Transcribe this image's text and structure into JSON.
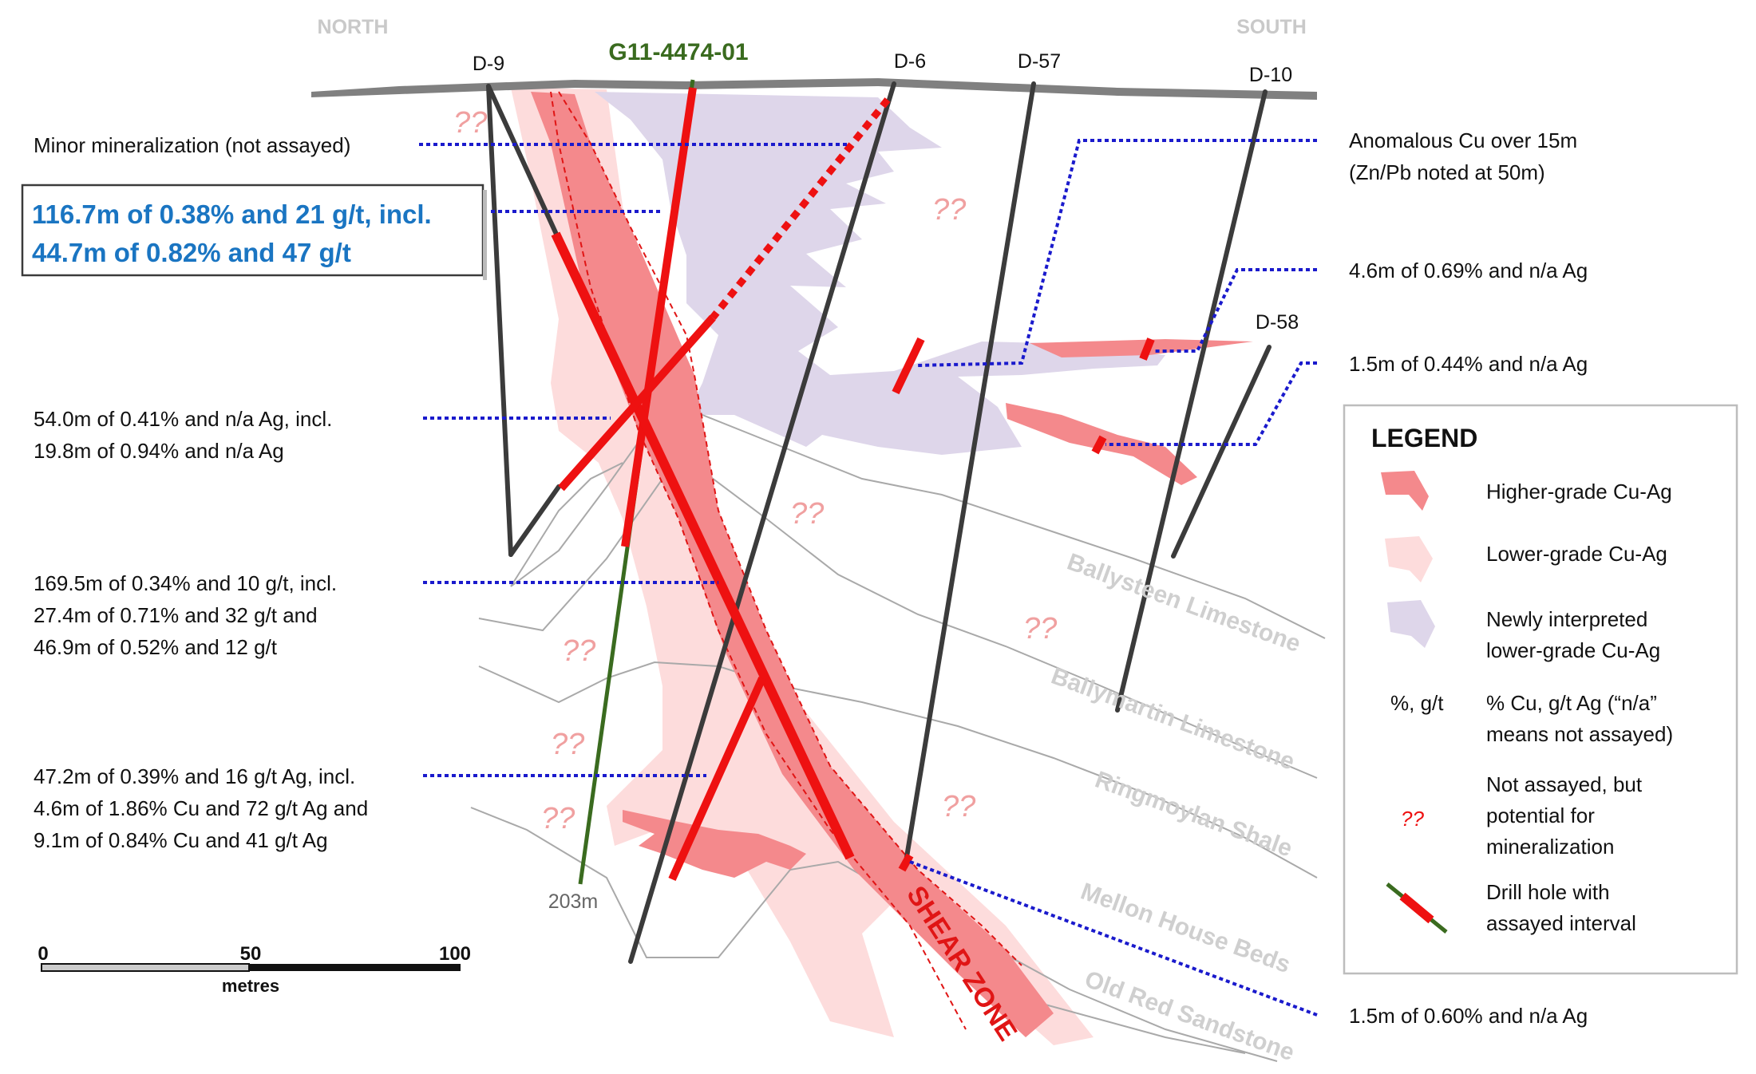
{
  "orientation": {
    "north": "NORTH",
    "south": "SOUTH"
  },
  "featured_hole": {
    "name": "G11-4474-01",
    "depth_label": "203m",
    "color": "#3a6b1f"
  },
  "drill_holes": [
    "D-9",
    "D-6",
    "D-57",
    "D-10",
    "D-58"
  ],
  "callouts": {
    "minor_mineralization": "Minor mineralization (not assayed)",
    "highlight_line1": "116.7m of 0.38% and 21 g/t, incl.",
    "highlight_line2": "44.7m of 0.82% and 47 g/t",
    "i54_line1": "54.0m of 0.41% and n/a Ag, incl.",
    "i54_line2": "19.8m of 0.94% and n/a Ag",
    "i169_line1": "169.5m of 0.34% and 10 g/t, incl.",
    "i169_line2": "27.4m of 0.71% and 32 g/t and",
    "i169_line3": "46.9m of 0.52% and 12 g/t",
    "i47_line1": "47.2m of 0.39% and 16 g/t Ag, incl.",
    "i47_line2": "4.6m of 1.86% Cu and 72 g/t Ag and",
    "i47_line3": "9.1m of 0.84% Cu and 41 g/t Ag",
    "anomalous_line1": "Anomalous Cu over 15m",
    "anomalous_line2": "(Zn/Pb noted at 50m)",
    "d10_interval": "4.6m of 0.69% and n/a Ag",
    "d58_interval": "1.5m of 0.44% and n/a Ag",
    "d6_deep_interval": "1.5m of 0.60% and n/a Ag"
  },
  "formations": [
    "Ballysteen Limestone",
    "Ballymartin Limestone",
    "Ringmoylan Shale",
    "Mellon House Beds",
    "Old Red Sandstone"
  ],
  "shear_zone_label": "SHEAR ZONE",
  "question_mark": "??",
  "scale_bar": {
    "ticks": [
      "0",
      "50",
      "100"
    ],
    "unit": "metres"
  },
  "legend": {
    "title": "LEGEND",
    "items": [
      {
        "label": "Higher-grade Cu-Ag",
        "icon": "higher-grade-swatch"
      },
      {
        "label": "Lower-grade Cu-Ag",
        "icon": "lower-grade-swatch"
      },
      {
        "label": "Newly interpreted",
        "label2": "lower-grade Cu-Ag",
        "icon": "newly-interpreted-swatch"
      },
      {
        "symbol": "%, g/t",
        "label": "% Cu, g/t Ag (“n/a”",
        "label2": "means not assayed)"
      },
      {
        "label": "Not assayed, but",
        "label2": "potential for",
        "label3": "mineralization",
        "icon": "question-marks-icon"
      },
      {
        "label": "Drill hole with",
        "label2": "assayed interval",
        "icon": "drill-hole-icon"
      }
    ]
  },
  "colors": {
    "higher_grade": "#f4898c",
    "lower_grade": "#fddcdc",
    "newly_interpreted": "#ded6ea",
    "assay": "#ee1111",
    "drill_hole": "#3b3b3b",
    "callout_line": "#1a1acc",
    "highlight_text": "#1a75c2",
    "formation_label": "#cfcfcf",
    "contact_line": "#a9a9a9",
    "question_marks": "#f0a0a0"
  }
}
